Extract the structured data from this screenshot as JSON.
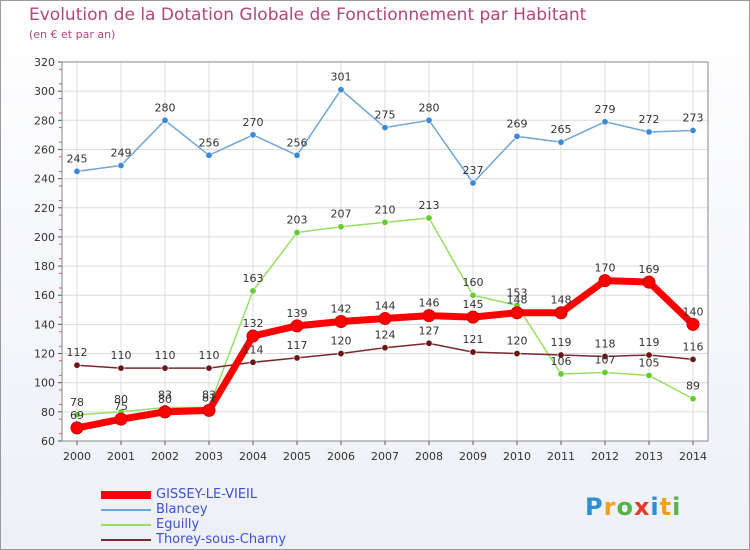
{
  "title": "Evolution de la Dotation Globale de Fonctionnement par Habitant",
  "subtitle": "(en € et par an)",
  "logo": {
    "text": "Proxiti",
    "letters": [
      {
        "ch": "P",
        "color": "#2f8fd6"
      },
      {
        "ch": "r",
        "color": "#f0a020"
      },
      {
        "ch": "o",
        "color": "#59b34a"
      },
      {
        "ch": "x",
        "color": "#e23b2a"
      },
      {
        "ch": "i",
        "color": "#2f8fd6"
      },
      {
        "ch": "t",
        "color": "#f0a020"
      },
      {
        "ch": "i",
        "color": "#59b34a"
      }
    ]
  },
  "chart_data": {
    "type": "line",
    "title": "Evolution de la Dotation Globale de Fonctionnement par Habitant",
    "subtitle": "(en € et par an)",
    "xlabel": "",
    "ylabel": "",
    "ylim": [
      60,
      320
    ],
    "yticks": [
      60,
      80,
      100,
      120,
      140,
      160,
      180,
      200,
      220,
      240,
      260,
      280,
      300,
      320
    ],
    "grid": true,
    "legend_position": "bottom-left",
    "categories": [
      "2000",
      "2001",
      "2002",
      "2003",
      "2004",
      "2005",
      "2006",
      "2007",
      "2008",
      "2009",
      "2010",
      "2011",
      "2012",
      "2013",
      "2014"
    ],
    "series": [
      {
        "name": "GISSEY-LE-VIEIL",
        "color": "#ff0000",
        "marker_color": "#ff0000",
        "values": [
          69,
          75,
          80,
          81,
          132,
          139,
          142,
          144,
          146,
          145,
          148,
          148,
          170,
          169,
          140
        ],
        "labels": [
          "69",
          "75",
          "80",
          "81",
          "132",
          "139",
          "142",
          "144",
          "146",
          "145",
          "148",
          "148",
          "170",
          "169",
          "140"
        ]
      },
      {
        "name": "Blancey",
        "color": "#6ea6d7",
        "marker_color": "#3c8ad6",
        "values": [
          245,
          249,
          280,
          256,
          270,
          256,
          301,
          275,
          280,
          237,
          269,
          265,
          279,
          272,
          273
        ],
        "labels": [
          "245",
          "249",
          "280",
          "256",
          "270",
          "256",
          "301",
          "275",
          "280",
          "237",
          "269",
          "265",
          "279",
          "272",
          "273"
        ]
      },
      {
        "name": "Eguilly",
        "color": "#99dd66",
        "marker_color": "#66cc33",
        "values": [
          78,
          80,
          83,
          83,
          163,
          203,
          207,
          210,
          213,
          160,
          153,
          106,
          107,
          105,
          89
        ],
        "labels": [
          "78",
          "80",
          "83",
          "83",
          "163",
          "203",
          "207",
          "210",
          "213",
          "160",
          "153",
          "106",
          "107",
          "105",
          "89"
        ]
      },
      {
        "name": "Thorey-sous-Charny",
        "color": "#7a2a2a",
        "marker_color": "#6a1616",
        "values": [
          112,
          110,
          110,
          110,
          114,
          117,
          120,
          124,
          127,
          121,
          120,
          119,
          118,
          119,
          116
        ],
        "labels": [
          "112",
          "110",
          "110",
          "110",
          "114",
          "117",
          "120",
          "124",
          "127",
          "121",
          "120",
          "119",
          "118",
          "119",
          "116"
        ]
      }
    ]
  }
}
